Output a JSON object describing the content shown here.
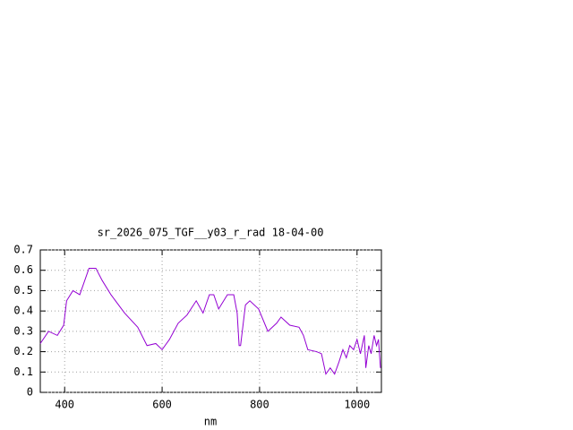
{
  "chart_data": {
    "type": "line",
    "title": "sr_2026_075_TGF__y03_r_rad 18-04-00",
    "x_label": "nm",
    "x": [
      350,
      367,
      385,
      398,
      404,
      417,
      431,
      450,
      464,
      477,
      495,
      523,
      550,
      569,
      587,
      600,
      615,
      633,
      651,
      670,
      684,
      697,
      706,
      716,
      734,
      747,
      754,
      758,
      761,
      771,
      780,
      798,
      817,
      835,
      844,
      862,
      881,
      890,
      899,
      917,
      927,
      936,
      945,
      954,
      963,
      971,
      978,
      985,
      993,
      1000,
      1007,
      1015,
      1018,
      1024,
      1029,
      1035,
      1040,
      1044,
      1048
    ],
    "series": [
      {
        "color": "#9400d3",
        "values": [
          0.24,
          0.3,
          0.28,
          0.33,
          0.45,
          0.5,
          0.48,
          0.61,
          0.61,
          0.55,
          0.48,
          0.39,
          0.32,
          0.23,
          0.24,
          0.21,
          0.26,
          0.34,
          0.38,
          0.45,
          0.39,
          0.48,
          0.48,
          0.41,
          0.48,
          0.48,
          0.39,
          0.23,
          0.23,
          0.43,
          0.45,
          0.41,
          0.3,
          0.34,
          0.37,
          0.33,
          0.32,
          0.28,
          0.21,
          0.2,
          0.19,
          0.09,
          0.12,
          0.09,
          0.15,
          0.21,
          0.17,
          0.23,
          0.21,
          0.26,
          0.19,
          0.28,
          0.12,
          0.23,
          0.19,
          0.28,
          0.23,
          0.26,
          0.12
        ]
      }
    ],
    "xlim": [
      350,
      1050
    ],
    "xticks": [
      400,
      600,
      800,
      1000
    ],
    "ylim": [
      0,
      0.7
    ],
    "yticks": [
      0,
      0.1,
      0.2,
      0.3,
      0.4,
      0.5,
      0.6,
      0.7
    ],
    "grid": true
  }
}
